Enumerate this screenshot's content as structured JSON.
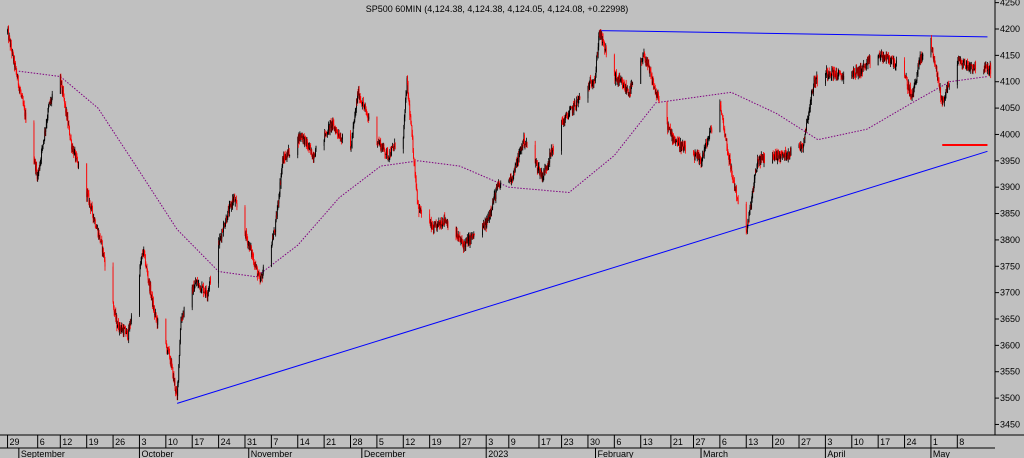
{
  "chart_data": {
    "type": "candlestick",
    "title": "SP500 60MIN (4,124.38, 4,124.38, 4,124.05, 4,124.08, +0.22998)",
    "ylim": [
      3430,
      4255
    ],
    "yticks": [
      4250,
      4200,
      4150,
      4100,
      4050,
      4000,
      3950,
      3900,
      3850,
      3800,
      3750,
      3700,
      3650,
      3600,
      3550,
      3500,
      3450
    ],
    "day_ticks": [
      "29",
      "6",
      "12",
      "19",
      "26",
      "3",
      "10",
      "17",
      "24",
      "31",
      "7",
      "14",
      "21",
      "28",
      "5",
      "12",
      "19",
      "27",
      "3",
      "9",
      "17",
      "23",
      "30",
      "6",
      "13",
      "21",
      "27",
      "6",
      "13",
      "20",
      "27",
      "3",
      "10",
      "17",
      "24",
      "1",
      "8"
    ],
    "months": [
      "September",
      "October",
      "November",
      "December",
      "2023",
      "February",
      "March",
      "April",
      "May"
    ],
    "colors": {
      "background": "#c0c0c0",
      "up_candle": "#000000",
      "down_candle": "#ff0000",
      "trendline": "#0000ff",
      "moving_average": "#800080",
      "horizontal_marker": "#ff0000"
    },
    "price_path": [
      {
        "date": "2022-08-29",
        "value": 4195
      },
      {
        "date": "2022-09-02",
        "value": 4060
      },
      {
        "date": "2022-09-06",
        "value": 3920
      },
      {
        "date": "2022-09-09",
        "value": 4055
      },
      {
        "date": "2022-09-12",
        "value": 4105
      },
      {
        "date": "2022-09-15",
        "value": 3980
      },
      {
        "date": "2022-09-19",
        "value": 3890
      },
      {
        "date": "2022-09-23",
        "value": 3790
      },
      {
        "date": "2022-09-27",
        "value": 3640
      },
      {
        "date": "2022-09-30",
        "value": 3620
      },
      {
        "date": "2022-10-04",
        "value": 3780
      },
      {
        "date": "2022-10-07",
        "value": 3660
      },
      {
        "date": "2022-10-11",
        "value": 3580
      },
      {
        "date": "2022-10-13",
        "value": 3500
      },
      {
        "date": "2022-10-14",
        "value": 3650
      },
      {
        "date": "2022-10-18",
        "value": 3720
      },
      {
        "date": "2022-10-21",
        "value": 3700
      },
      {
        "date": "2022-10-25",
        "value": 3820
      },
      {
        "date": "2022-10-28",
        "value": 3880
      },
      {
        "date": "2022-11-02",
        "value": 3770
      },
      {
        "date": "2022-11-04",
        "value": 3720
      },
      {
        "date": "2022-11-08",
        "value": 3820
      },
      {
        "date": "2022-11-10",
        "value": 3950
      },
      {
        "date": "2022-11-15",
        "value": 4000
      },
      {
        "date": "2022-11-18",
        "value": 3960
      },
      {
        "date": "2022-11-23",
        "value": 4020
      },
      {
        "date": "2022-11-28",
        "value": 3970
      },
      {
        "date": "2022-11-30",
        "value": 4080
      },
      {
        "date": "2022-12-05",
        "value": 3990
      },
      {
        "date": "2022-12-08",
        "value": 3960
      },
      {
        "date": "2022-12-12",
        "value": 4000
      },
      {
        "date": "2022-12-13",
        "value": 4100
      },
      {
        "date": "2022-12-16",
        "value": 3860
      },
      {
        "date": "2022-12-20",
        "value": 3820
      },
      {
        "date": "2022-12-23",
        "value": 3840
      },
      {
        "date": "2022-12-28",
        "value": 3790
      },
      {
        "date": "2023-01-03",
        "value": 3830
      },
      {
        "date": "2023-01-06",
        "value": 3900
      },
      {
        "date": "2023-01-10",
        "value": 3920
      },
      {
        "date": "2023-01-13",
        "value": 3990
      },
      {
        "date": "2023-01-18",
        "value": 3920
      },
      {
        "date": "2023-01-23",
        "value": 4020
      },
      {
        "date": "2023-01-27",
        "value": 4060
      },
      {
        "date": "2023-02-01",
        "value": 4110
      },
      {
        "date": "2023-02-02",
        "value": 4195
      },
      {
        "date": "2023-02-06",
        "value": 4110
      },
      {
        "date": "2023-02-10",
        "value": 4080
      },
      {
        "date": "2023-02-14",
        "value": 4150
      },
      {
        "date": "2023-02-17",
        "value": 4080
      },
      {
        "date": "2023-02-21",
        "value": 4000
      },
      {
        "date": "2023-02-24",
        "value": 3975
      },
      {
        "date": "2023-03-01",
        "value": 3950
      },
      {
        "date": "2023-03-06",
        "value": 4060
      },
      {
        "date": "2023-03-09",
        "value": 3930
      },
      {
        "date": "2023-03-13",
        "value": 3810
      },
      {
        "date": "2023-03-16",
        "value": 3950
      },
      {
        "date": "2023-03-20",
        "value": 3960
      },
      {
        "date": "2023-03-23",
        "value": 3960
      },
      {
        "date": "2023-03-28",
        "value": 3980
      },
      {
        "date": "2023-03-31",
        "value": 4100
      },
      {
        "date": "2023-04-04",
        "value": 4120
      },
      {
        "date": "2023-04-07",
        "value": 4110
      },
      {
        "date": "2023-04-12",
        "value": 4120
      },
      {
        "date": "2023-04-17",
        "value": 4150
      },
      {
        "date": "2023-04-21",
        "value": 4140
      },
      {
        "date": "2023-04-24",
        "value": 4110
      },
      {
        "date": "2023-04-26",
        "value": 4070
      },
      {
        "date": "2023-04-28",
        "value": 4140
      },
      {
        "date": "2023-05-01",
        "value": 4175
      },
      {
        "date": "2023-05-03",
        "value": 4100
      },
      {
        "date": "2023-05-04",
        "value": 4060
      },
      {
        "date": "2023-05-08",
        "value": 4140
      },
      {
        "date": "2023-05-11",
        "value": 4130
      },
      {
        "date": "2023-05-16",
        "value": 4124
      }
    ],
    "moving_average": [
      {
        "date": "2022-09-01",
        "value": 4120
      },
      {
        "date": "2022-09-12",
        "value": 4110
      },
      {
        "date": "2022-09-22",
        "value": 4050
      },
      {
        "date": "2022-10-03",
        "value": 3930
      },
      {
        "date": "2022-10-13",
        "value": 3820
      },
      {
        "date": "2022-10-24",
        "value": 3740
      },
      {
        "date": "2022-11-03",
        "value": 3730
      },
      {
        "date": "2022-11-14",
        "value": 3790
      },
      {
        "date": "2022-11-25",
        "value": 3880
      },
      {
        "date": "2022-12-06",
        "value": 3940
      },
      {
        "date": "2022-12-16",
        "value": 3950
      },
      {
        "date": "2022-12-27",
        "value": 3940
      },
      {
        "date": "2023-01-09",
        "value": 3900
      },
      {
        "date": "2023-01-25",
        "value": 3890
      },
      {
        "date": "2023-02-06",
        "value": 3960
      },
      {
        "date": "2023-02-17",
        "value": 4060
      },
      {
        "date": "2023-02-27",
        "value": 4070
      },
      {
        "date": "2023-03-09",
        "value": 4080
      },
      {
        "date": "2023-03-21",
        "value": 4040
      },
      {
        "date": "2023-04-01",
        "value": 3990
      },
      {
        "date": "2023-04-14",
        "value": 4010
      },
      {
        "date": "2023-04-26",
        "value": 4060
      },
      {
        "date": "2023-05-06",
        "value": 4100
      },
      {
        "date": "2023-05-16",
        "value": 4110
      }
    ],
    "trendlines": [
      {
        "name": "resistance",
        "from": {
          "date": "2023-02-02",
          "value": 4197
        },
        "to": {
          "date": "2023-05-16",
          "value": 4185
        }
      },
      {
        "name": "support",
        "from": {
          "date": "2022-10-13",
          "value": 3490
        },
        "to": {
          "date": "2023-05-16",
          "value": 3968
        }
      }
    ],
    "marker_line": {
      "from": "2023-05-04",
      "to": "2023-05-16",
      "value": 3980
    },
    "grid": false
  }
}
